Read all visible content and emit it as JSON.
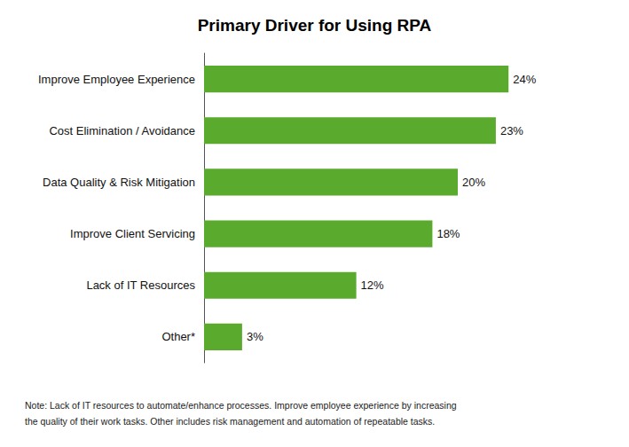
{
  "chart_data": {
    "type": "bar",
    "orientation": "horizontal",
    "title": "Primary Driver for Using RPA",
    "categories": [
      "Other*",
      "Lack of IT Resources",
      "Improve Client Servicing",
      "Data Quality & Risk Mitigation",
      "Cost Elimination / Avoidance",
      "Improve Employee Experience"
    ],
    "values": [
      3,
      12,
      18,
      20,
      23,
      24
    ],
    "value_labels": [
      "3%",
      "12%",
      "18%",
      "20%",
      "23%",
      "24%"
    ],
    "data_labels": true,
    "color": "#5aaa2e",
    "xlim": [
      0,
      30
    ],
    "tick_labels": "y",
    "grid": false,
    "annotations": [
      "Note: Lack of IT resources to automate/enhance processes. Improve employee experience by increasing",
      "the quality of their work tasks. Other includes risk management and automation of repeatable tasks."
    ]
  }
}
